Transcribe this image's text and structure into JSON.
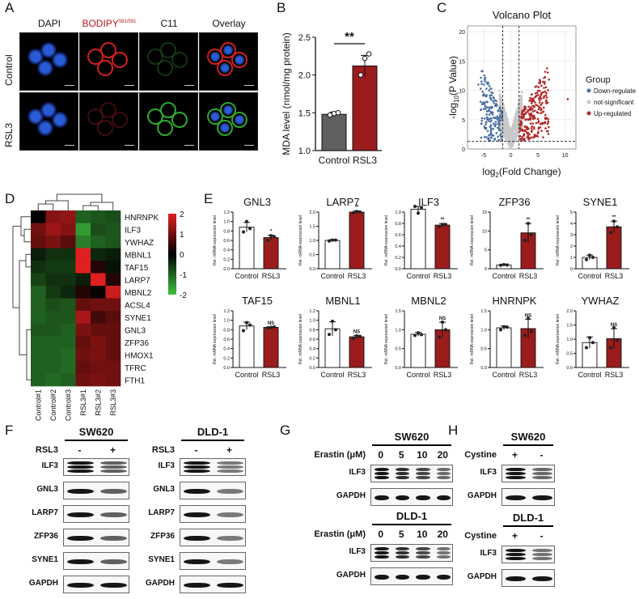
{
  "panels": {
    "A": {
      "letter": "A",
      "col_headers": [
        "DAPI",
        "BODIPY",
        "C11",
        "Overlay"
      ],
      "bodipy_superscript": "581/591",
      "row_labels": [
        "Control",
        "RSL3"
      ],
      "colors": {
        "dapi": "#2a5bd7",
        "bodipy": "#d02020",
        "c11": "#2fa830",
        "header_red": "#b01c1c"
      }
    },
    "B": {
      "letter": "B",
      "significance": "**",
      "chart_data": {
        "type": "bar",
        "categories": [
          "Control",
          "RSL3"
        ],
        "values": [
          1.48,
          2.12
        ],
        "points": [
          [
            1.47,
            1.49,
            1.5
          ],
          [
            2.0,
            2.22,
            2.28
          ]
        ],
        "errors": [
          0.03,
          0.14
        ],
        "ylabel": "MDA level (nmol/mg protein)",
        "ylim": [
          1.0,
          2.5
        ],
        "yticks": [
          "1.0",
          "1.5",
          "2.0",
          "2.5"
        ],
        "colors": [
          "#606060",
          "#9b1c1c"
        ]
      }
    },
    "C": {
      "letter": "C",
      "chart_data": {
        "type": "scatter",
        "title": "Volcano Plot",
        "xlabel_main": "log",
        "xlabel_sub": "2",
        "xlabel_rest": "(Fold Change)",
        "ylabel_pre": "-log",
        "ylabel_sub": "10",
        "ylabel_rest": "(P Value)",
        "xlim": [
          -8,
          12
        ],
        "ylim": [
          0,
          21
        ],
        "xticks": [
          "-5",
          "0",
          "5",
          "10"
        ],
        "yticks": [
          "0",
          "5",
          "10",
          "15",
          "20"
        ],
        "fc_cutoffs": [
          -1.5,
          1.5
        ],
        "p_cutoff": 1.3,
        "legend_title": "Group",
        "groups": [
          {
            "name": "Down-regulate",
            "color": "#4a6fa0"
          },
          {
            "name": "not-significant",
            "color": "#c8c8c8"
          },
          {
            "name": "Up-regulated",
            "color": "#b22a2a"
          }
        ]
      }
    },
    "D": {
      "letter": "D",
      "chart_data": {
        "type": "heatmap",
        "rows": [
          "HNRNPK",
          "ILF3",
          "YWHAZ",
          "MBNL1",
          "TAF15",
          "LARP7",
          "MBNL2",
          "ACSL4",
          "SYNE1",
          "GNL3",
          "ZFP36",
          "HMOX1",
          "TFRC",
          "FTH1"
        ],
        "columns": [
          "Control#1",
          "Control#2",
          "Control#3",
          "RSL3#1",
          "RSL3#2",
          "RSL3#3"
        ],
        "values": [
          [
            0.0,
            1.2,
            1.3,
            -1.0,
            -0.9,
            -0.8
          ],
          [
            1.0,
            1.4,
            1.2,
            -1.6,
            -0.8,
            -0.9
          ],
          [
            0.9,
            1.1,
            0.8,
            -1.3,
            -1.0,
            -0.9
          ],
          [
            -0.3,
            -0.5,
            -0.5,
            2.0,
            -0.4,
            -0.3
          ],
          [
            -0.5,
            -0.6,
            -0.6,
            2.0,
            0.3,
            -0.2
          ],
          [
            -0.7,
            -0.5,
            -0.5,
            -0.3,
            2.0,
            0.3
          ],
          [
            -1.0,
            -0.6,
            -0.4,
            0.3,
            0.1,
            1.8
          ],
          [
            -1.0,
            -0.8,
            -0.9,
            0.9,
            1.0,
            1.0
          ],
          [
            -1.0,
            -0.9,
            -0.9,
            1.5,
            0.6,
            0.8
          ],
          [
            -0.9,
            -0.9,
            -1.0,
            1.1,
            0.9,
            0.9
          ],
          [
            -1.0,
            -1.0,
            -1.0,
            0.9,
            1.1,
            0.9
          ],
          [
            -1.0,
            -1.0,
            -1.1,
            1.0,
            1.1,
            0.9
          ],
          [
            -1.0,
            -1.0,
            -1.1,
            0.9,
            1.0,
            1.0
          ],
          [
            -1.0,
            -1.1,
            -1.0,
            1.0,
            1.1,
            1.0
          ]
        ],
        "scale": [
          "2",
          "1",
          "0",
          "-1",
          "-2"
        ],
        "colors": {
          "high": "#e02020",
          "mid": "#000000",
          "low": "#40c040"
        }
      }
    },
    "E": {
      "letter": "E",
      "ylabel": "Rel. mRNA expression level",
      "categories": [
        "Control",
        "RSL3"
      ],
      "colors": {
        "control": "#ffffff",
        "rsl3": "#9b1c1c"
      },
      "chart_data": [
        {
          "type": "bar",
          "title": "GNL3",
          "ylim": [
            0,
            1.2
          ],
          "yticks": [
            "0.0",
            "0.2",
            "0.4",
            "0.6",
            "0.8",
            "1.0",
            "1.2"
          ],
          "values": [
            0.88,
            0.66
          ],
          "errors": [
            0.1,
            0.05
          ],
          "points": [
            [
              0.78,
              1.0,
              0.85
            ],
            [
              0.6,
              0.7,
              0.68
            ]
          ],
          "sig": "*"
        },
        {
          "type": "bar",
          "title": "LARP7",
          "ylim": [
            0,
            2.0
          ],
          "yticks": [
            "0.0",
            "0.5",
            "1.0",
            "1.5",
            "2.0"
          ],
          "values": [
            1.0,
            2.0
          ],
          "errors": [
            0.03,
            0.04
          ],
          "points": [
            [
              0.98,
              1.01,
              1.01
            ],
            [
              1.98,
              2.02,
              2.0
            ]
          ],
          "sig": "**"
        },
        {
          "type": "bar",
          "title": "ILF3",
          "ylim": [
            0,
            1.0
          ],
          "yticks": [
            "0.0",
            "0.2",
            "0.4",
            "0.6",
            "0.8",
            "1.0"
          ],
          "values": [
            1.05,
            0.77
          ],
          "errors": [
            0.08,
            0.03
          ],
          "points": [
            [
              1.1,
              0.98,
              1.08
            ],
            [
              0.75,
              0.78,
              0.78
            ]
          ],
          "sig": "**"
        },
        {
          "type": "bar",
          "title": "ZFP36",
          "ylim": [
            0,
            15
          ],
          "yticks": [
            "0",
            "5",
            "10",
            "15"
          ],
          "values": [
            1.0,
            9.5
          ],
          "errors": [
            0.2,
            2.5
          ],
          "points": [
            [
              0.9,
              1.1,
              1.0
            ],
            [
              7.5,
              12.0,
              9.0
            ]
          ],
          "sig": "**"
        },
        {
          "type": "bar",
          "title": "SYNE1",
          "ylim": [
            0,
            5
          ],
          "yticks": [
            "0",
            "1",
            "2",
            "3",
            "4",
            "5"
          ],
          "values": [
            1.0,
            3.7
          ],
          "errors": [
            0.2,
            0.5
          ],
          "points": [
            [
              0.8,
              1.2,
              1.0
            ],
            [
              3.2,
              4.2,
              3.7
            ]
          ],
          "sig": "**"
        },
        {
          "type": "bar",
          "title": "TAF15",
          "ylim": [
            0,
            1.2
          ],
          "yticks": [
            "0.0",
            "0.2",
            "0.4",
            "0.6",
            "0.8",
            "1.0",
            "1.2"
          ],
          "values": [
            0.88,
            0.85
          ],
          "errors": [
            0.08,
            0.01
          ],
          "points": [
            [
              0.78,
              0.95,
              0.9
            ],
            [
              0.84,
              0.85,
              0.86
            ]
          ],
          "sig": "NS"
        },
        {
          "type": "bar",
          "title": "MBNL1",
          "ylim": [
            0,
            1.2
          ],
          "yticks": [
            "0.0",
            "0.2",
            "0.4",
            "0.6",
            "0.8",
            "1.0",
            "1.2"
          ],
          "values": [
            0.82,
            0.65
          ],
          "errors": [
            0.15,
            0.03
          ],
          "points": [
            [
              0.7,
              0.98,
              0.8
            ],
            [
              0.62,
              0.67,
              0.66
            ]
          ],
          "sig": "NS"
        },
        {
          "type": "bar",
          "title": "MBNL2",
          "ylim": [
            0,
            1.5
          ],
          "yticks": [
            "0.0",
            "0.5",
            "1.0",
            "1.5"
          ],
          "values": [
            0.88,
            1.0
          ],
          "errors": [
            0.05,
            0.2
          ],
          "points": [
            [
              0.85,
              0.92,
              0.87
            ],
            [
              0.8,
              1.2,
              1.0
            ]
          ],
          "sig": "NS"
        },
        {
          "type": "bar",
          "title": "HNRNPK",
          "ylim": [
            0,
            1.5
          ],
          "yticks": [
            "0.0",
            "0.5",
            "1.0",
            "1.5"
          ],
          "values": [
            1.05,
            1.03
          ],
          "errors": [
            0.05,
            0.25
          ],
          "points": [
            [
              1.0,
              1.08,
              1.07
            ],
            [
              0.85,
              1.3,
              0.95
            ]
          ],
          "sig": "NS"
        },
        {
          "type": "bar",
          "title": "YWHAZ",
          "ylim": [
            0,
            2.0
          ],
          "yticks": [
            "0.0",
            "0.5",
            "1.0",
            "1.5",
            "2.0"
          ],
          "values": [
            0.88,
            1.02
          ],
          "errors": [
            0.2,
            0.35
          ],
          "points": [
            [
              0.7,
              1.05,
              0.88
            ],
            [
              0.7,
              1.4,
              0.95
            ]
          ],
          "sig": "NS"
        }
      ]
    },
    "F": {
      "letter": "F",
      "blots": [
        {
          "cell_line": "SW620",
          "treatment": "RSL3",
          "signs": [
            "-",
            "+"
          ],
          "proteins": [
            "ILF3",
            "GNL3",
            "LARP7",
            "ZFP36",
            "SYNE1",
            "GAPDH"
          ]
        },
        {
          "cell_line": "DLD-1",
          "treatment": "RSL3",
          "signs": [
            "-",
            "+"
          ],
          "proteins": [
            "ILF3",
            "GNL3",
            "LARP7",
            "ZFP36",
            "SYNE1",
            "GAPDH"
          ]
        }
      ]
    },
    "G": {
      "letter": "G",
      "blots": [
        {
          "cell_line": "SW620",
          "treatment": "Erastin (μM)",
          "doses": [
            "0",
            "5",
            "10",
            "20"
          ],
          "proteins": [
            "ILF3",
            "GAPDH"
          ]
        },
        {
          "cell_line": "DLD-1",
          "treatment": "Erastin (μM)",
          "doses": [
            "0",
            "5",
            "10",
            "20"
          ],
          "proteins": [
            "ILF3",
            "GAPDH"
          ]
        }
      ]
    },
    "H": {
      "letter": "H",
      "blots": [
        {
          "cell_line": "SW620",
          "treatment": "Cystine",
          "signs": [
            "+",
            "-"
          ],
          "proteins": [
            "ILF3",
            "GAPDH"
          ]
        },
        {
          "cell_line": "DLD-1",
          "treatment": "Cystine",
          "signs": [
            "+",
            "-"
          ],
          "proteins": [
            "ILF3",
            "GAPDH"
          ]
        }
      ]
    }
  }
}
